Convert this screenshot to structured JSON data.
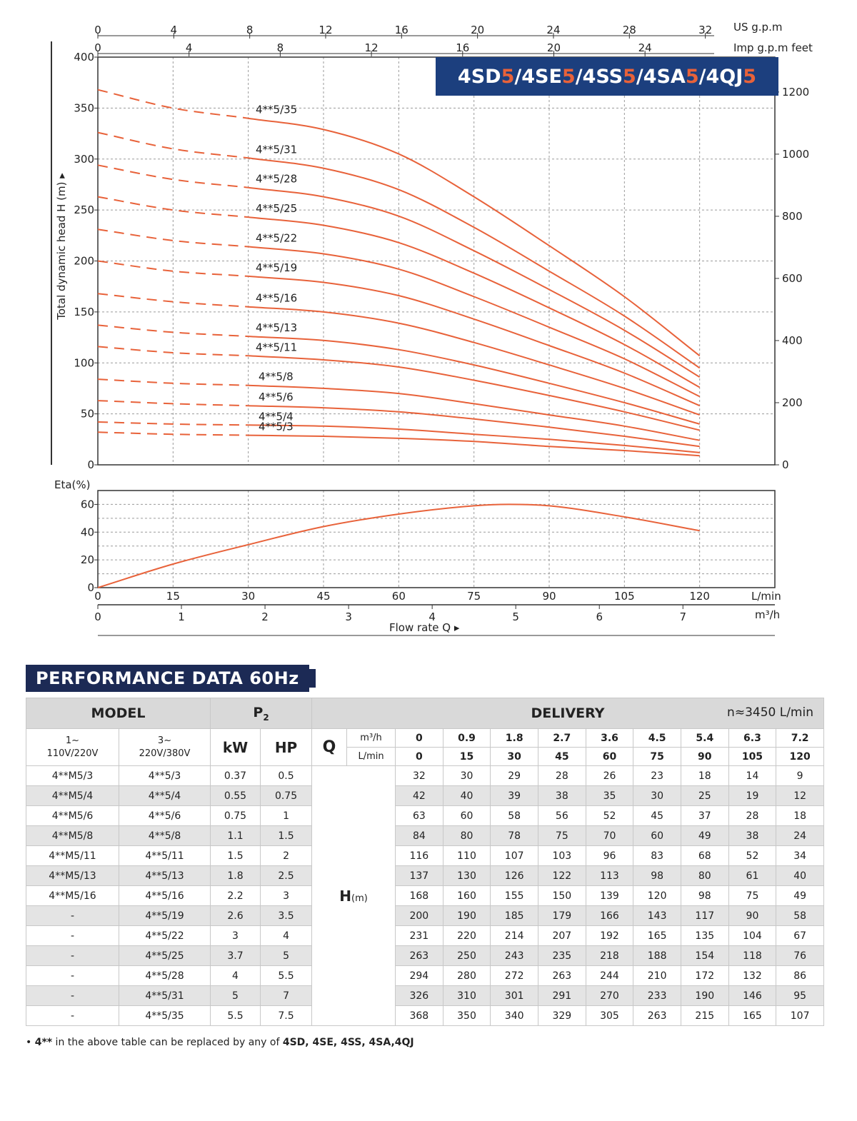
{
  "chart_data": [
    {
      "type": "line",
      "title": "4SD5/4SE5/4SS5/4SA5/4QJ5",
      "title_parts": [
        {
          "text": "4SD",
          "accent": false
        },
        {
          "text": "5",
          "accent": true
        },
        {
          "text": "/4SE",
          "accent": false
        },
        {
          "text": "5",
          "accent": true
        },
        {
          "text": "/4SS",
          "accent": false
        },
        {
          "text": "5",
          "accent": true
        },
        {
          "text": "/4SA",
          "accent": false
        },
        {
          "text": "5",
          "accent": true
        },
        {
          "text": "/4QJ",
          "accent": false
        },
        {
          "text": "5",
          "accent": true
        }
      ],
      "ylabel": "Total dynamic head H (m)",
      "ylim": [
        0,
        400
      ],
      "yticks": [
        0,
        50,
        100,
        150,
        200,
        250,
        300,
        350,
        400
      ],
      "y2_label": "feet",
      "y2_ticks": [
        0,
        200,
        400,
        600,
        800,
        1000,
        1200
      ],
      "top_axis_us_label": "US g.p.m",
      "top_axis_us_ticks": [
        0,
        4,
        8,
        12,
        16,
        20,
        24,
        28,
        32
      ],
      "top_axis_imp_label": "Imp g.p.m",
      "top_axis_imp_ticks": [
        0,
        4,
        8,
        12,
        16,
        20,
        24
      ],
      "xlim": [
        0,
        135
      ],
      "x_unit": "L/min",
      "grid": true,
      "operating_range_lmin": [
        30,
        120
      ],
      "x": [
        0,
        15,
        30,
        45,
        60,
        75,
        90,
        105,
        120
      ],
      "series": [
        {
          "name": "4**5/35",
          "values": [
            368,
            350,
            340,
            329,
            305,
            263,
            215,
            165,
            107
          ]
        },
        {
          "name": "4**5/31",
          "values": [
            326,
            310,
            301,
            291,
            270,
            233,
            190,
            146,
            95
          ]
        },
        {
          "name": "4**5/28",
          "values": [
            294,
            280,
            272,
            263,
            244,
            210,
            172,
            132,
            86
          ]
        },
        {
          "name": "4**5/25",
          "values": [
            263,
            250,
            243,
            235,
            218,
            188,
            154,
            118,
            76
          ]
        },
        {
          "name": "4**5/22",
          "values": [
            231,
            220,
            214,
            207,
            192,
            165,
            135,
            104,
            67
          ]
        },
        {
          "name": "4**5/19",
          "values": [
            200,
            190,
            185,
            179,
            166,
            143,
            117,
            90,
            58
          ]
        },
        {
          "name": "4**5/16",
          "values": [
            168,
            160,
            155,
            150,
            139,
            120,
            98,
            75,
            49
          ]
        },
        {
          "name": "4**5/13",
          "values": [
            137,
            130,
            126,
            122,
            113,
            98,
            80,
            61,
            40
          ]
        },
        {
          "name": "4**5/11",
          "values": [
            116,
            110,
            107,
            103,
            96,
            83,
            68,
            52,
            34
          ]
        },
        {
          "name": "4**5/8",
          "values": [
            84,
            80,
            78,
            75,
            70,
            60,
            49,
            38,
            24
          ]
        },
        {
          "name": "4**5/6",
          "values": [
            63,
            60,
            58,
            56,
            52,
            45,
            37,
            28,
            18
          ]
        },
        {
          "name": "4**5/4",
          "values": [
            42,
            40,
            39,
            38,
            35,
            30,
            25,
            19,
            12
          ]
        },
        {
          "name": "4**5/3",
          "values": [
            32,
            30,
            29,
            28,
            26,
            23,
            18,
            14,
            9
          ]
        }
      ],
      "color": "#e8623a"
    },
    {
      "type": "line",
      "ylabel": "Eta(%)",
      "ylim": [
        0,
        70
      ],
      "yticks": [
        0,
        20,
        40,
        60
      ],
      "xlim": [
        0,
        135
      ],
      "x_label_lmin": "L/min",
      "xticks_lmin": [
        0,
        15,
        30,
        45,
        60,
        75,
        90,
        105,
        120
      ],
      "x_label_m3h": "m³/h",
      "xticks_m3h": [
        0,
        1,
        2,
        3,
        4,
        5,
        6,
        7
      ],
      "xlabel": "Flow rate   Q",
      "grid": true,
      "x": [
        0,
        15,
        30,
        45,
        60,
        75,
        82,
        90,
        105,
        120
      ],
      "values": [
        0,
        17,
        31,
        44,
        53,
        59,
        60,
        59,
        51,
        41
      ],
      "color": "#e8623a"
    }
  ],
  "section_title": "PERFORMANCE DATA 60Hz",
  "table": {
    "model_header": "MODEL",
    "p2_header": "P2",
    "delivery_header": "DELIVERY",
    "speed": "n≈3450 L/min",
    "phase1_label": "1~\n110V/220V",
    "phase3_label": "3~\n220V/380V",
    "kw_label": "kW",
    "hp_label": "HP",
    "q_label": "Q",
    "m3h_label": "m³/h",
    "lmin_label": "L/min",
    "h_label": "H",
    "h_unit": "(m)",
    "flow_m3h": [
      "0",
      "0.9",
      "1.8",
      "2.7",
      "3.6",
      "4.5",
      "5.4",
      "6.3",
      "7.2"
    ],
    "flow_lmin": [
      "0",
      "15",
      "30",
      "45",
      "60",
      "75",
      "90",
      "105",
      "120"
    ],
    "rows": [
      {
        "single": "4**M5/3",
        "three": "4**5/3",
        "kw": "0.37",
        "hp": "0.5",
        "h": [
          "32",
          "30",
          "29",
          "28",
          "26",
          "23",
          "18",
          "14",
          "9"
        ]
      },
      {
        "single": "4**M5/4",
        "three": "4**5/4",
        "kw": "0.55",
        "hp": "0.75",
        "h": [
          "42",
          "40",
          "39",
          "38",
          "35",
          "30",
          "25",
          "19",
          "12"
        ]
      },
      {
        "single": "4**M5/6",
        "three": "4**5/6",
        "kw": "0.75",
        "hp": "1",
        "h": [
          "63",
          "60",
          "58",
          "56",
          "52",
          "45",
          "37",
          "28",
          "18"
        ]
      },
      {
        "single": "4**M5/8",
        "three": "4**5/8",
        "kw": "1.1",
        "hp": "1.5",
        "h": [
          "84",
          "80",
          "78",
          "75",
          "70",
          "60",
          "49",
          "38",
          "24"
        ]
      },
      {
        "single": "4**M5/11",
        "three": "4**5/11",
        "kw": "1.5",
        "hp": "2",
        "h": [
          "116",
          "110",
          "107",
          "103",
          "96",
          "83",
          "68",
          "52",
          "34"
        ]
      },
      {
        "single": "4**M5/13",
        "three": "4**5/13",
        "kw": "1.8",
        "hp": "2.5",
        "h": [
          "137",
          "130",
          "126",
          "122",
          "113",
          "98",
          "80",
          "61",
          "40"
        ]
      },
      {
        "single": "4**M5/16",
        "three": "4**5/16",
        "kw": "2.2",
        "hp": "3",
        "h": [
          "168",
          "160",
          "155",
          "150",
          "139",
          "120",
          "98",
          "75",
          "49"
        ]
      },
      {
        "single": "-",
        "three": "4**5/19",
        "kw": "2.6",
        "hp": "3.5",
        "h": [
          "200",
          "190",
          "185",
          "179",
          "166",
          "143",
          "117",
          "90",
          "58"
        ]
      },
      {
        "single": "-",
        "three": "4**5/22",
        "kw": "3",
        "hp": "4",
        "h": [
          "231",
          "220",
          "214",
          "207",
          "192",
          "165",
          "135",
          "104",
          "67"
        ]
      },
      {
        "single": "-",
        "three": "4**5/25",
        "kw": "3.7",
        "hp": "5",
        "h": [
          "263",
          "250",
          "243",
          "235",
          "218",
          "188",
          "154",
          "118",
          "76"
        ]
      },
      {
        "single": "-",
        "three": "4**5/28",
        "kw": "4",
        "hp": "5.5",
        "h": [
          "294",
          "280",
          "272",
          "263",
          "244",
          "210",
          "172",
          "132",
          "86"
        ]
      },
      {
        "single": "-",
        "three": "4**5/31",
        "kw": "5",
        "hp": "7",
        "h": [
          "326",
          "310",
          "301",
          "291",
          "270",
          "233",
          "190",
          "146",
          "95"
        ]
      },
      {
        "single": "-",
        "three": "4**5/35",
        "kw": "5.5",
        "hp": "7.5",
        "h": [
          "368",
          "350",
          "340",
          "329",
          "305",
          "263",
          "215",
          "165",
          "107"
        ]
      }
    ]
  },
  "footnote": {
    "bullet": "•",
    "lead": "4**",
    "middle": " in the above table can be replaced by any of ",
    "tail": "4SD, 4SE, 4SS, 4SA,4QJ"
  }
}
